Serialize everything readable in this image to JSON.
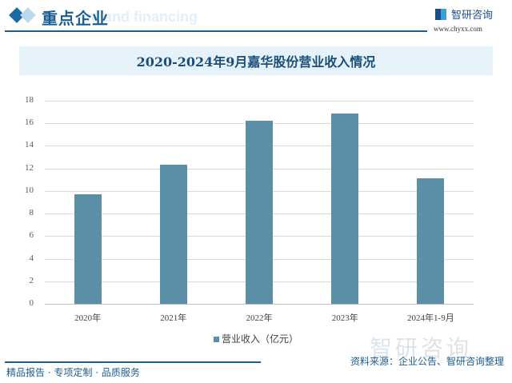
{
  "header": {
    "title": "重点企业",
    "ghost_text": "nt and financing",
    "logo_text": "智研咨询",
    "logo_url": "www.chyxx.com"
  },
  "chart_title": "2020-2024年9月嘉华股份营业收入情况",
  "legend": {
    "label": "营业收入（亿元）"
  },
  "watermark": "智研咨询",
  "footer": {
    "left": "精品报告 · 专项定制 · 品质服务",
    "source": "资料来源：企业公告、智研咨询整理"
  },
  "yticks": [
    "18",
    "16",
    "14",
    "12",
    "10",
    "8",
    "6",
    "4",
    "2",
    "0"
  ],
  "chart_data": {
    "type": "bar",
    "title": "2020-2024年9月嘉华股份营业收入情况",
    "categories": [
      "2020年",
      "2021年",
      "2022年",
      "2023年",
      "2024年1-9月"
    ],
    "series": [
      {
        "name": "营业收入（亿元）",
        "values": [
          9.7,
          12.3,
          16.2,
          16.9,
          11.1
        ],
        "color": "#5b8fa8"
      }
    ],
    "xlabel": "",
    "ylabel": "",
    "ylim": [
      0,
      18
    ],
    "yticks": [
      0,
      2,
      4,
      6,
      8,
      10,
      12,
      14,
      16,
      18
    ],
    "grid": true,
    "legend_position": "bottom"
  }
}
